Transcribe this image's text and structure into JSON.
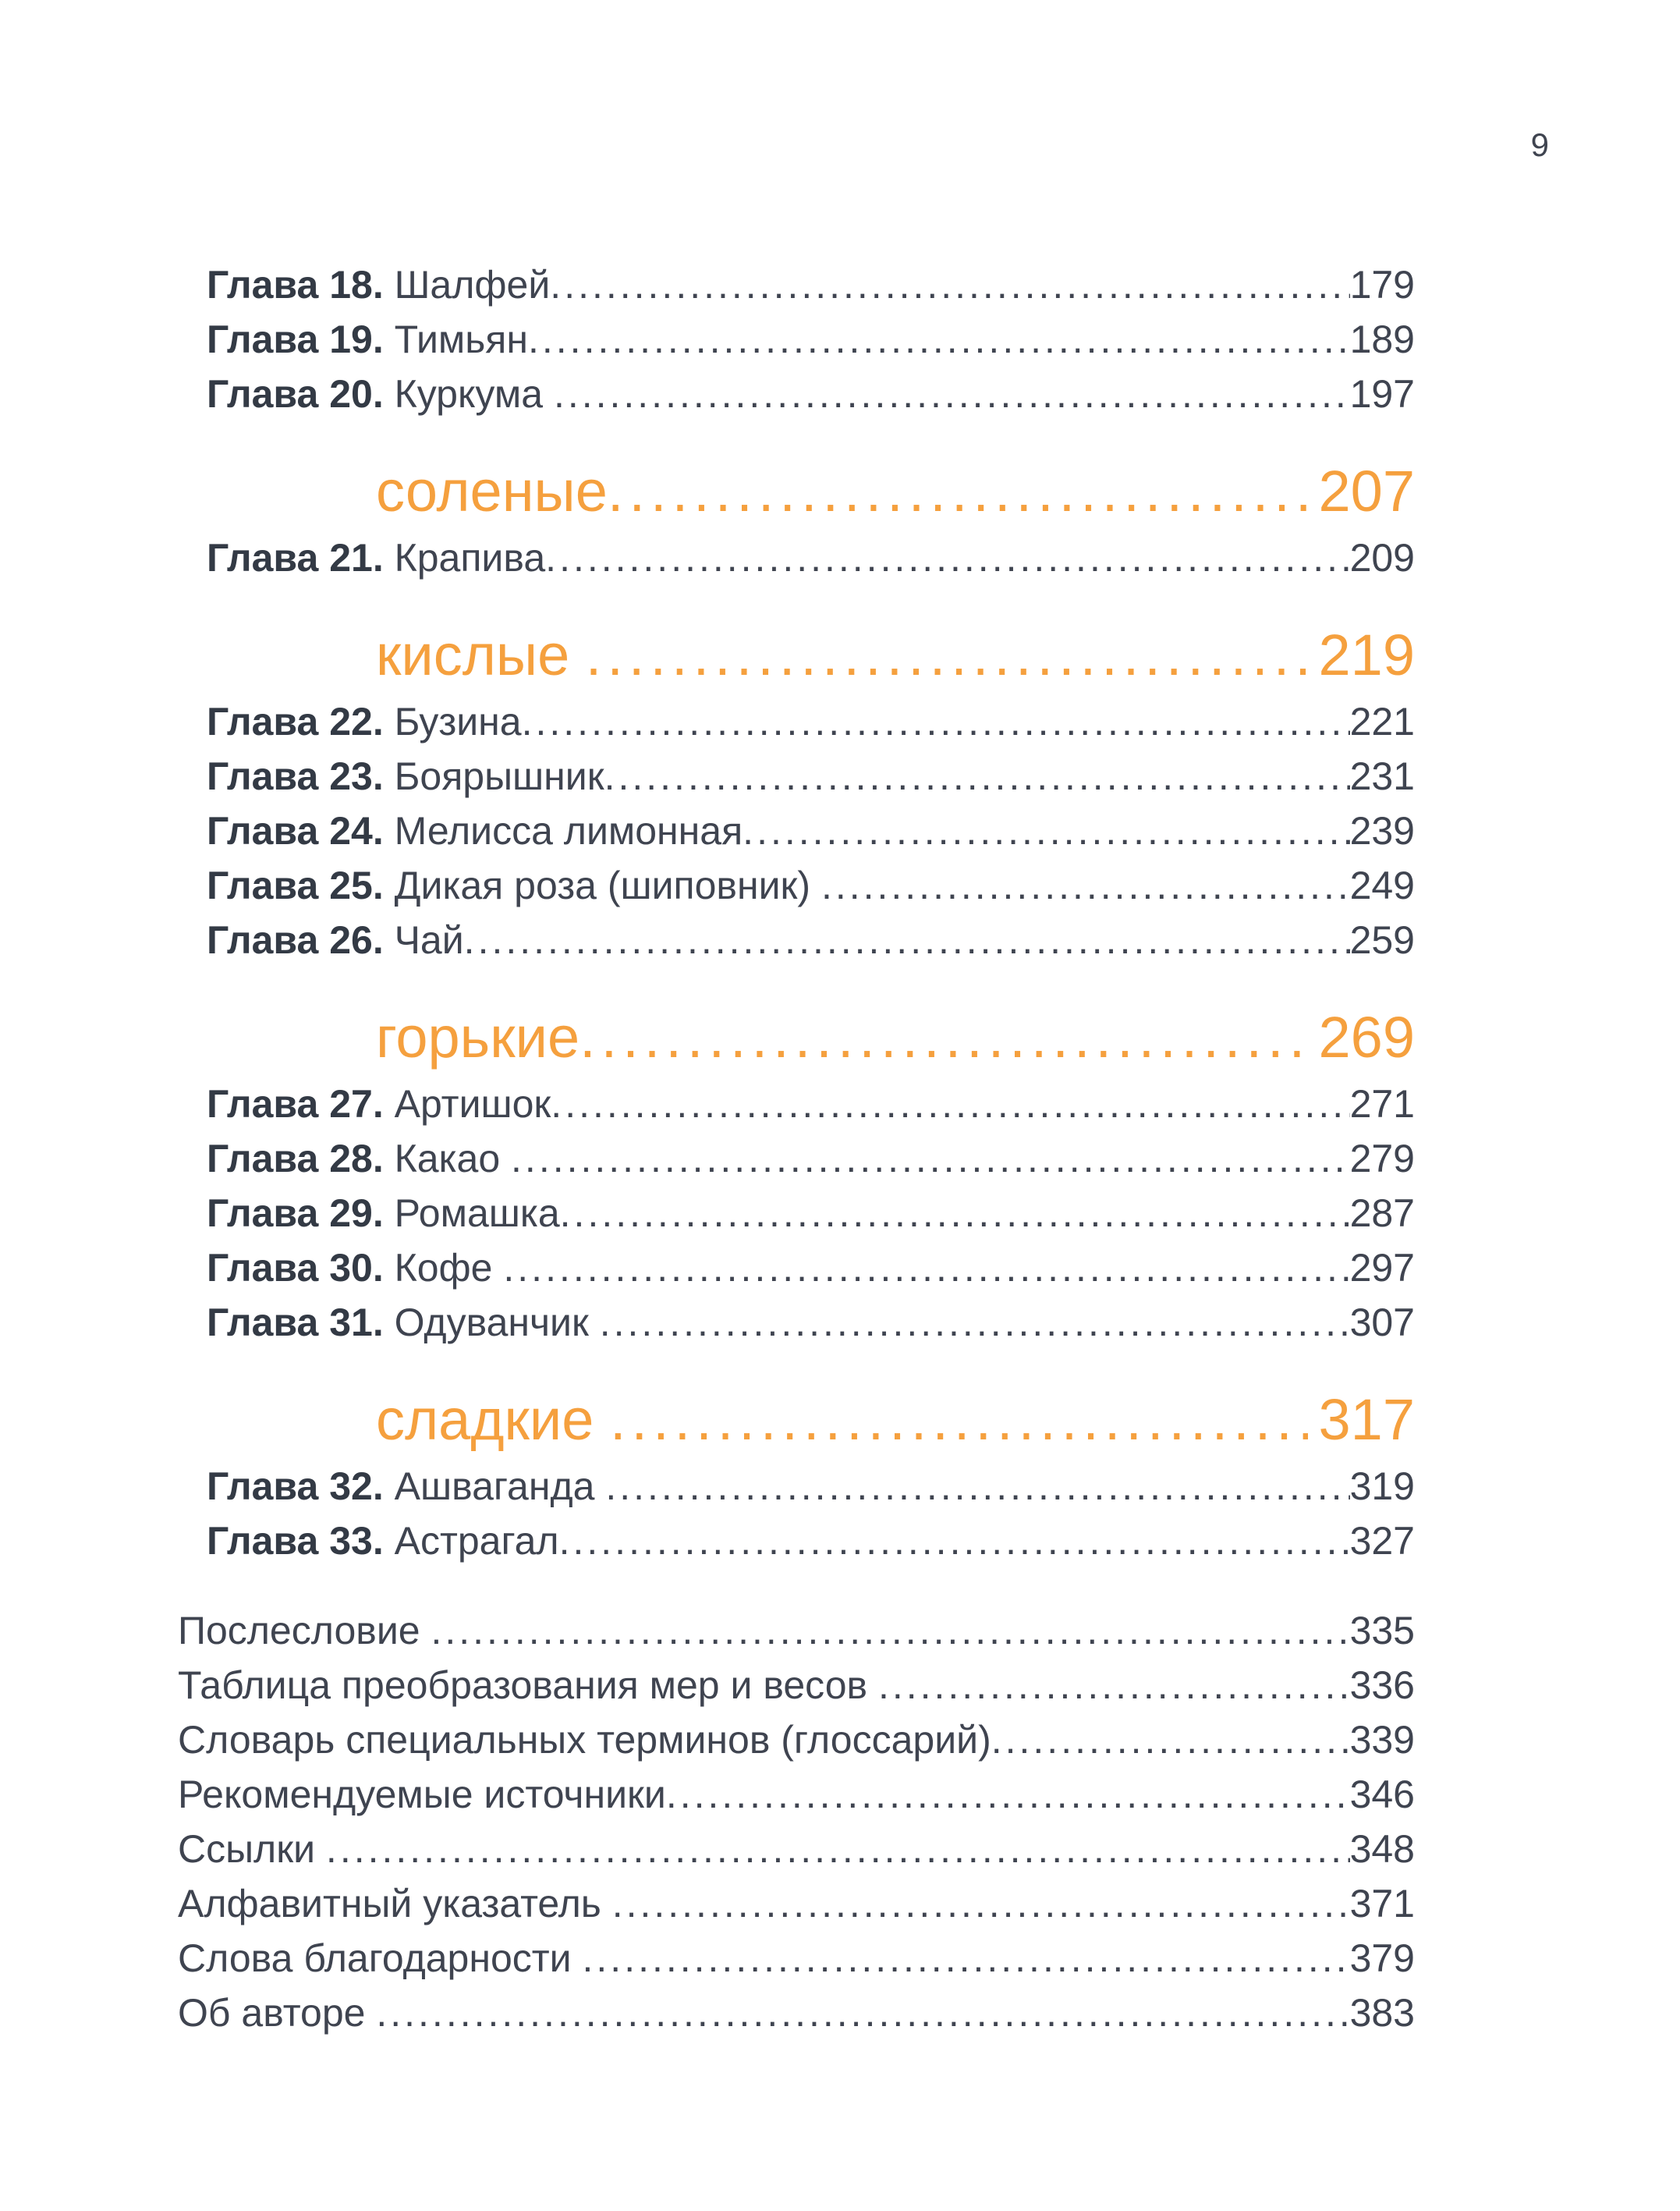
{
  "colors": {
    "accent": "#F5A03E",
    "text": "#3F4450",
    "text_bold": "#333A45",
    "background": "#FFFFFF"
  },
  "folio": "9",
  "toc": {
    "top_chapters": [
      {
        "label": "Глава 18. ",
        "title": "Шалфей",
        "page": "179"
      },
      {
        "label": "Глава 19. ",
        "title": "Тимьян",
        "page": "189"
      },
      {
        "label": "Глава 20. ",
        "title": "Куркума ",
        "page": "197"
      }
    ],
    "sections": [
      {
        "heading": "соленые",
        "page": "207",
        "chapters": [
          {
            "label": "Глава 21. ",
            "title": "Крапива",
            "page": "209"
          }
        ]
      },
      {
        "heading": "кислые ",
        "page": "219",
        "chapters": [
          {
            "label": "Глава 22. ",
            "title": "Бузина",
            "page": "221"
          },
          {
            "label": "Глава 23. ",
            "title": "Боярышник",
            "page": "231"
          },
          {
            "label": "Глава 24. ",
            "title": "Мелисса лимонная",
            "page": "239"
          },
          {
            "label": "Глава 25. ",
            "title": "Дикая роза (шиповник) ",
            "page": "249"
          },
          {
            "label": "Глава 26. ",
            "title": "Чай",
            "page": "259"
          }
        ]
      },
      {
        "heading": "горькие",
        "page": "269",
        "chapters": [
          {
            "label": "Глава 27. ",
            "title": "Артишок",
            "page": "271"
          },
          {
            "label": "Глава 28. ",
            "title": "Какао ",
            "page": "279"
          },
          {
            "label": "Глава 29. ",
            "title": "Ромашка",
            "page": "287"
          },
          {
            "label": "Глава 30. ",
            "title": "Кофе ",
            "page": "297"
          },
          {
            "label": "Глава 31. ",
            "title": "Одуванчик ",
            "page": "307"
          }
        ]
      },
      {
        "heading": "сладкие ",
        "page": "317",
        "chapters": [
          {
            "label": "Глава 32. ",
            "title": "Ашваганда ",
            "page": "319"
          },
          {
            "label": "Глава 33. ",
            "title": "Астрагал",
            "page": "327"
          }
        ]
      }
    ],
    "back_matter": [
      {
        "title": "Послесловие ",
        "page": "335"
      },
      {
        "title": "Таблица преобразования мер и весов ",
        "page": "336"
      },
      {
        "title": "Словарь специальных терминов (глоссарий)",
        "page": "339"
      },
      {
        "title": "Рекомендуемые источники",
        "page": "346"
      },
      {
        "title": "Ссылки ",
        "page": "348"
      },
      {
        "title": "Алфавитный указатель ",
        "page": "371"
      },
      {
        "title": "Слова благодарности ",
        "page": "379"
      },
      {
        "title": "Об авторе ",
        "page": "383"
      }
    ]
  }
}
